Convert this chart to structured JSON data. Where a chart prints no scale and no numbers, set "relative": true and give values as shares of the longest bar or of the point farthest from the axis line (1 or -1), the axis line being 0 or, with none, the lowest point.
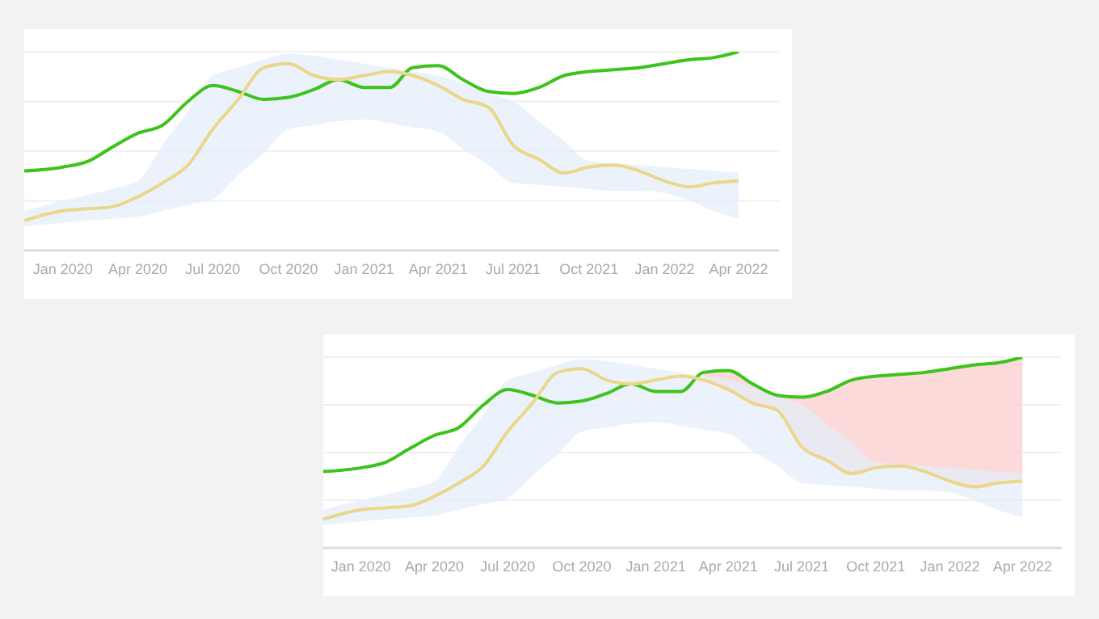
{
  "chart_data": [
    {
      "type": "line",
      "relative": true,
      "grid": "y",
      "x": [
        "2019-11-15",
        "2020-01-01",
        "2020-02-01",
        "2020-03-01",
        "2020-04-01",
        "2020-05-01",
        "2020-06-01",
        "2020-07-01",
        "2020-08-01",
        "2020-09-01",
        "2020-10-01",
        "2020-11-01",
        "2020-12-01",
        "2021-01-01",
        "2021-02-01",
        "2021-03-01",
        "2021-04-01",
        "2021-05-01",
        "2021-06-01",
        "2021-07-01",
        "2021-08-01",
        "2021-09-01",
        "2021-10-01",
        "2021-11-01",
        "2021-12-01",
        "2022-01-01",
        "2022-02-01",
        "2022-03-01",
        "2022-04-01"
      ],
      "xlim": [
        "2019-11-15",
        "2022-05-20"
      ],
      "xticks": [
        {
          "value": "2020-01-01",
          "label": "Jan 2020"
        },
        {
          "value": "2020-04-01",
          "label": "Apr 2020"
        },
        {
          "value": "2020-07-01",
          "label": "Jul 2020"
        },
        {
          "value": "2020-10-01",
          "label": "Oct 2020"
        },
        {
          "value": "2021-01-01",
          "label": "Jan 2021"
        },
        {
          "value": "2021-04-01",
          "label": "Apr 2021"
        },
        {
          "value": "2021-07-01",
          "label": "Jul 2021"
        },
        {
          "value": "2021-10-01",
          "label": "Oct 2021"
        },
        {
          "value": "2022-01-01",
          "label": "Jan 2022"
        },
        {
          "value": "2022-04-01",
          "label": "Apr 2022"
        }
      ],
      "series": [
        {
          "type": "line",
          "color": "#3cc31c",
          "values": [
            0.4,
            0.42,
            0.45,
            0.52,
            0.59,
            0.63,
            0.75,
            0.83,
            0.8,
            0.76,
            0.77,
            0.81,
            0.86,
            0.82,
            0.82,
            0.92,
            0.93,
            0.86,
            0.8,
            0.79,
            0.82,
            0.88,
            0.9,
            0.91,
            0.92,
            0.94,
            0.96,
            0.97,
            1.0
          ]
        },
        {
          "type": "line",
          "color": "#ebd68a",
          "values": [
            0.15,
            0.2,
            0.21,
            0.22,
            0.27,
            0.34,
            0.43,
            0.61,
            0.76,
            0.92,
            0.94,
            0.88,
            0.86,
            0.88,
            0.9,
            0.88,
            0.83,
            0.76,
            0.72,
            0.53,
            0.46,
            0.39,
            0.42,
            0.43,
            0.4,
            0.35,
            0.32,
            0.34,
            0.35
          ],
          "lower": [
            0.12,
            0.14,
            0.15,
            0.16,
            0.17,
            0.2,
            0.23,
            0.26,
            0.38,
            0.49,
            0.61,
            0.63,
            0.65,
            0.66,
            0.64,
            0.62,
            0.6,
            0.51,
            0.43,
            0.34,
            0.33,
            0.32,
            0.31,
            0.3,
            0.3,
            0.29,
            0.25,
            0.2,
            0.16
          ],
          "upper": [
            0.2,
            0.25,
            0.28,
            0.31,
            0.35,
            0.53,
            0.7,
            0.88,
            0.92,
            0.96,
            0.99,
            0.98,
            0.96,
            0.94,
            0.92,
            0.9,
            0.88,
            0.84,
            0.79,
            0.75,
            0.65,
            0.55,
            0.45,
            0.44,
            0.43,
            0.42,
            0.41,
            0.4,
            0.39
          ]
        }
      ]
    },
    {
      "type": "line",
      "relative": true,
      "grid": "y",
      "x": [
        "2019-11-15",
        "2020-01-01",
        "2020-02-01",
        "2020-03-01",
        "2020-04-01",
        "2020-05-01",
        "2020-06-01",
        "2020-07-01",
        "2020-08-01",
        "2020-09-01",
        "2020-10-01",
        "2020-11-01",
        "2020-12-01",
        "2021-01-01",
        "2021-02-01",
        "2021-03-01",
        "2021-04-01",
        "2021-05-01",
        "2021-06-01",
        "2021-07-01",
        "2021-08-01",
        "2021-09-01",
        "2021-10-01",
        "2021-11-01",
        "2021-12-01",
        "2022-01-01",
        "2022-02-01",
        "2022-03-01",
        "2022-04-01"
      ],
      "xlim": [
        "2019-11-15",
        "2022-05-20"
      ],
      "xticks": [
        {
          "value": "2020-01-01",
          "label": "Jan 2020"
        },
        {
          "value": "2020-04-01",
          "label": "Apr 2020"
        },
        {
          "value": "2020-07-01",
          "label": "Jul 2020"
        },
        {
          "value": "2020-10-01",
          "label": "Oct 2020"
        },
        {
          "value": "2021-01-01",
          "label": "Jan 2021"
        },
        {
          "value": "2021-04-01",
          "label": "Apr 2021"
        },
        {
          "value": "2021-07-01",
          "label": "Jul 2021"
        },
        {
          "value": "2021-10-01",
          "label": "Oct 2021"
        },
        {
          "value": "2022-01-01",
          "label": "Jan 2022"
        },
        {
          "value": "2022-04-01",
          "label": "Apr 2022"
        }
      ],
      "series": [
        {
          "type": "line",
          "color": "#3cc31c",
          "values": [
            0.4,
            0.42,
            0.45,
            0.52,
            0.59,
            0.63,
            0.75,
            0.83,
            0.8,
            0.76,
            0.77,
            0.81,
            0.86,
            0.82,
            0.82,
            0.92,
            0.93,
            0.86,
            0.8,
            0.79,
            0.82,
            0.88,
            0.9,
            0.91,
            0.92,
            0.94,
            0.96,
            0.97,
            1.0
          ],
          "lower": [
            null,
            null,
            null,
            null,
            null,
            null,
            null,
            null,
            null,
            null,
            null,
            null,
            null,
            null,
            null,
            0.88,
            0.83,
            0.76,
            0.72,
            0.53,
            0.46,
            0.39,
            0.42,
            0.43,
            0.4,
            0.35,
            0.32,
            0.34,
            0.35
          ],
          "upper": [
            null,
            null,
            null,
            null,
            null,
            null,
            null,
            null,
            null,
            null,
            null,
            null,
            null,
            null,
            null,
            0.92,
            0.93,
            0.86,
            0.8,
            0.79,
            0.82,
            0.88,
            0.9,
            0.91,
            0.92,
            0.94,
            0.96,
            0.97,
            1.0
          ]
        },
        {
          "type": "line",
          "color": "#ebd68a",
          "values": [
            0.15,
            0.2,
            0.21,
            0.22,
            0.27,
            0.34,
            0.43,
            0.61,
            0.76,
            0.92,
            0.94,
            0.88,
            0.86,
            0.88,
            0.9,
            0.88,
            0.83,
            0.76,
            0.72,
            0.53,
            0.46,
            0.39,
            0.42,
            0.43,
            0.4,
            0.35,
            0.32,
            0.34,
            0.35
          ],
          "lower": [
            0.12,
            0.14,
            0.15,
            0.16,
            0.17,
            0.2,
            0.23,
            0.26,
            0.38,
            0.49,
            0.61,
            0.63,
            0.65,
            0.66,
            0.64,
            0.62,
            0.6,
            0.51,
            0.43,
            0.34,
            0.33,
            0.32,
            0.31,
            0.3,
            0.3,
            0.29,
            0.25,
            0.2,
            0.16
          ],
          "upper": [
            0.2,
            0.25,
            0.28,
            0.31,
            0.35,
            0.53,
            0.7,
            0.88,
            0.92,
            0.96,
            0.99,
            0.98,
            0.96,
            0.94,
            0.92,
            0.9,
            0.88,
            0.84,
            0.79,
            0.75,
            0.65,
            0.55,
            0.45,
            0.44,
            0.43,
            0.42,
            0.41,
            0.4,
            0.39
          ]
        }
      ]
    }
  ]
}
